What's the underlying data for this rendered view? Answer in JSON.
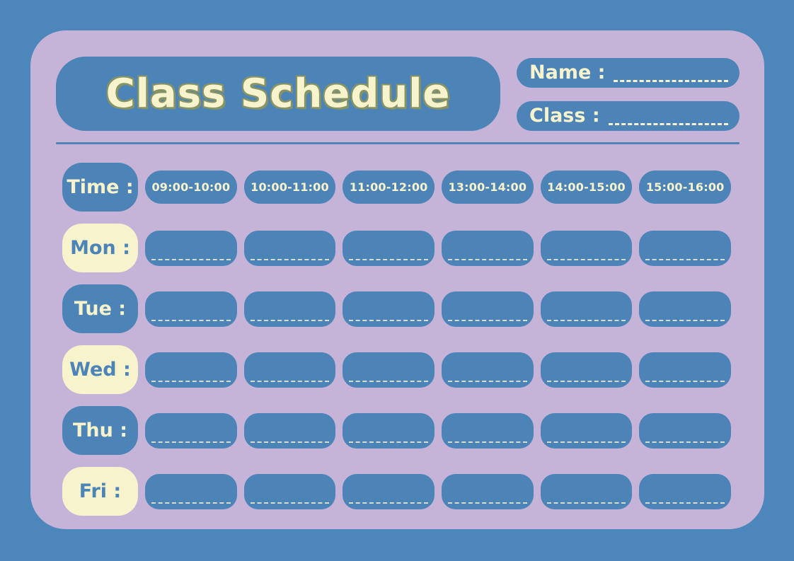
{
  "header": {
    "title": "Class Schedule",
    "name_label": "Name :",
    "class_label": "Class :",
    "name_value": "",
    "class_value": ""
  },
  "schedule": {
    "time_label": "Time :",
    "time_slots": [
      "09:00-10:00",
      "10:00-11:00",
      "11:00-12:00",
      "13:00-14:00",
      "14:00-15:00",
      "15:00-16:00"
    ],
    "days": [
      {
        "label": "Mon :",
        "variant": "cream"
      },
      {
        "label": "Tue :",
        "variant": "blue"
      },
      {
        "label": "Wed :",
        "variant": "cream"
      },
      {
        "label": "Thu :",
        "variant": "blue"
      },
      {
        "label": "Fri :",
        "variant": "cream"
      }
    ],
    "slots_per_day": 6,
    "cell_values": []
  },
  "colors": {
    "background_blue": "#4d86ba",
    "panel_lavender": "#c5b3d8",
    "box_blue": "#4c84b8",
    "cream": "#f7f3cc",
    "title_shadow_olive": "#879364"
  }
}
